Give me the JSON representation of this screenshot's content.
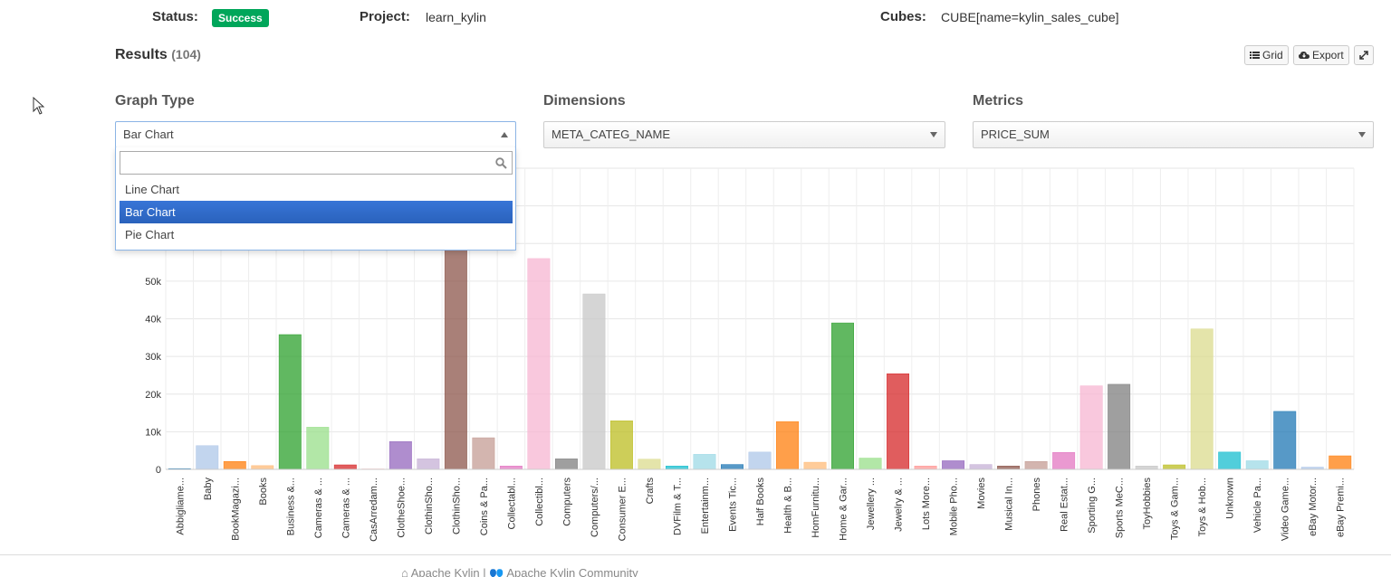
{
  "header": {
    "status_label": "Status:",
    "status_value": "Success",
    "project_label": "Project:",
    "project_value": "learn_kylin",
    "cubes_label": "Cubes:",
    "cubes_value": "CUBE[name=kylin_sales_cube]"
  },
  "results": {
    "title": "Results",
    "count": "(104)",
    "grid_label": "Grid",
    "export_label": "Export"
  },
  "graph_type": {
    "label": "Graph Type",
    "selected": "Bar Chart",
    "search_value": "",
    "options": [
      "Line Chart",
      "Bar Chart",
      "Pie Chart"
    ]
  },
  "dimensions": {
    "label": "Dimensions",
    "selected": "META_CATEG_NAME"
  },
  "metrics": {
    "label": "Metrics",
    "selected": "PRICE_SUM"
  },
  "footer": {
    "left": "Apache Kylin",
    "separator": "|",
    "right": "Apache Kylin Community"
  },
  "chart_data": {
    "type": "bar",
    "y_ticks": [
      "0",
      "10k",
      "20k",
      "30k",
      "40k",
      "50k"
    ],
    "ylim": [
      0,
      80000
    ],
    "categories": [
      "Abbigliame...",
      "Baby",
      "BookMagazi...",
      "Books",
      "Business &...",
      "Cameras & ...",
      "Cameras & ...",
      "CasArredam...",
      "ClotheShoe...",
      "ClothinSho...",
      "ClothinSho...",
      "Coins & Pa...",
      "Collectabl...",
      "Collectibl...",
      "Computers",
      "Computers/...",
      "Consumer E...",
      "Crafts",
      "DVFilm & T...",
      "Entertainm...",
      "Events Tic...",
      "Half Books",
      "Health & B...",
      "HomFurnitu...",
      "Home & Gar...",
      "Jewellery ...",
      "Jewelry & ...",
      "Lots More...",
      "Mobile Pho...",
      "Movies",
      "Musical In...",
      "Phones",
      "Real Estat...",
      "Sporting G...",
      "Sports MeC...",
      "ToyHobbies",
      "Toys & Gam...",
      "Toys & Hob...",
      "Unknown",
      "Vehicle Pa...",
      "Video Game...",
      "eBay Motor...",
      "eBay Premi..."
    ],
    "values": [
      200,
      6300,
      2100,
      1000,
      35800,
      11200,
      1200,
      100,
      7400,
      2800,
      60000,
      8400,
      900,
      56000,
      2800,
      46600,
      12900,
      2700,
      900,
      4000,
      1300,
      4600,
      12700,
      1900,
      38900,
      3000,
      25400,
      900,
      2300,
      1300,
      900,
      2100,
      4500,
      22200,
      22600,
      900,
      1200,
      37300,
      4600,
      2300,
      15400,
      600,
      3600
    ],
    "colors": [
      "#1f77b4",
      "#aec7e8",
      "#ff7f0e",
      "#ffbb78",
      "#2ca02c",
      "#98df8a",
      "#d62728",
      "#ff9896",
      "#9467bd",
      "#c5b0d5",
      "#8c564b",
      "#c49c94",
      "#e377c2",
      "#f7b6d2",
      "#7f7f7f",
      "#c7c7c7",
      "#bcbd22",
      "#dbdb8d",
      "#17becf",
      "#9edae5",
      "#1f77b4",
      "#aec7e8",
      "#ff7f0e",
      "#ffbb78",
      "#2ca02c",
      "#98df8a",
      "#d62728",
      "#ff9896",
      "#9467bd",
      "#c5b0d5",
      "#8c564b",
      "#c49c94",
      "#e377c2",
      "#f7b6d2",
      "#7f7f7f",
      "#c7c7c7",
      "#bcbd22",
      "#dbdb8d",
      "#17becf",
      "#9edae5",
      "#1f77b4",
      "#aec7e8",
      "#ff7f0e"
    ],
    "grid": true
  }
}
